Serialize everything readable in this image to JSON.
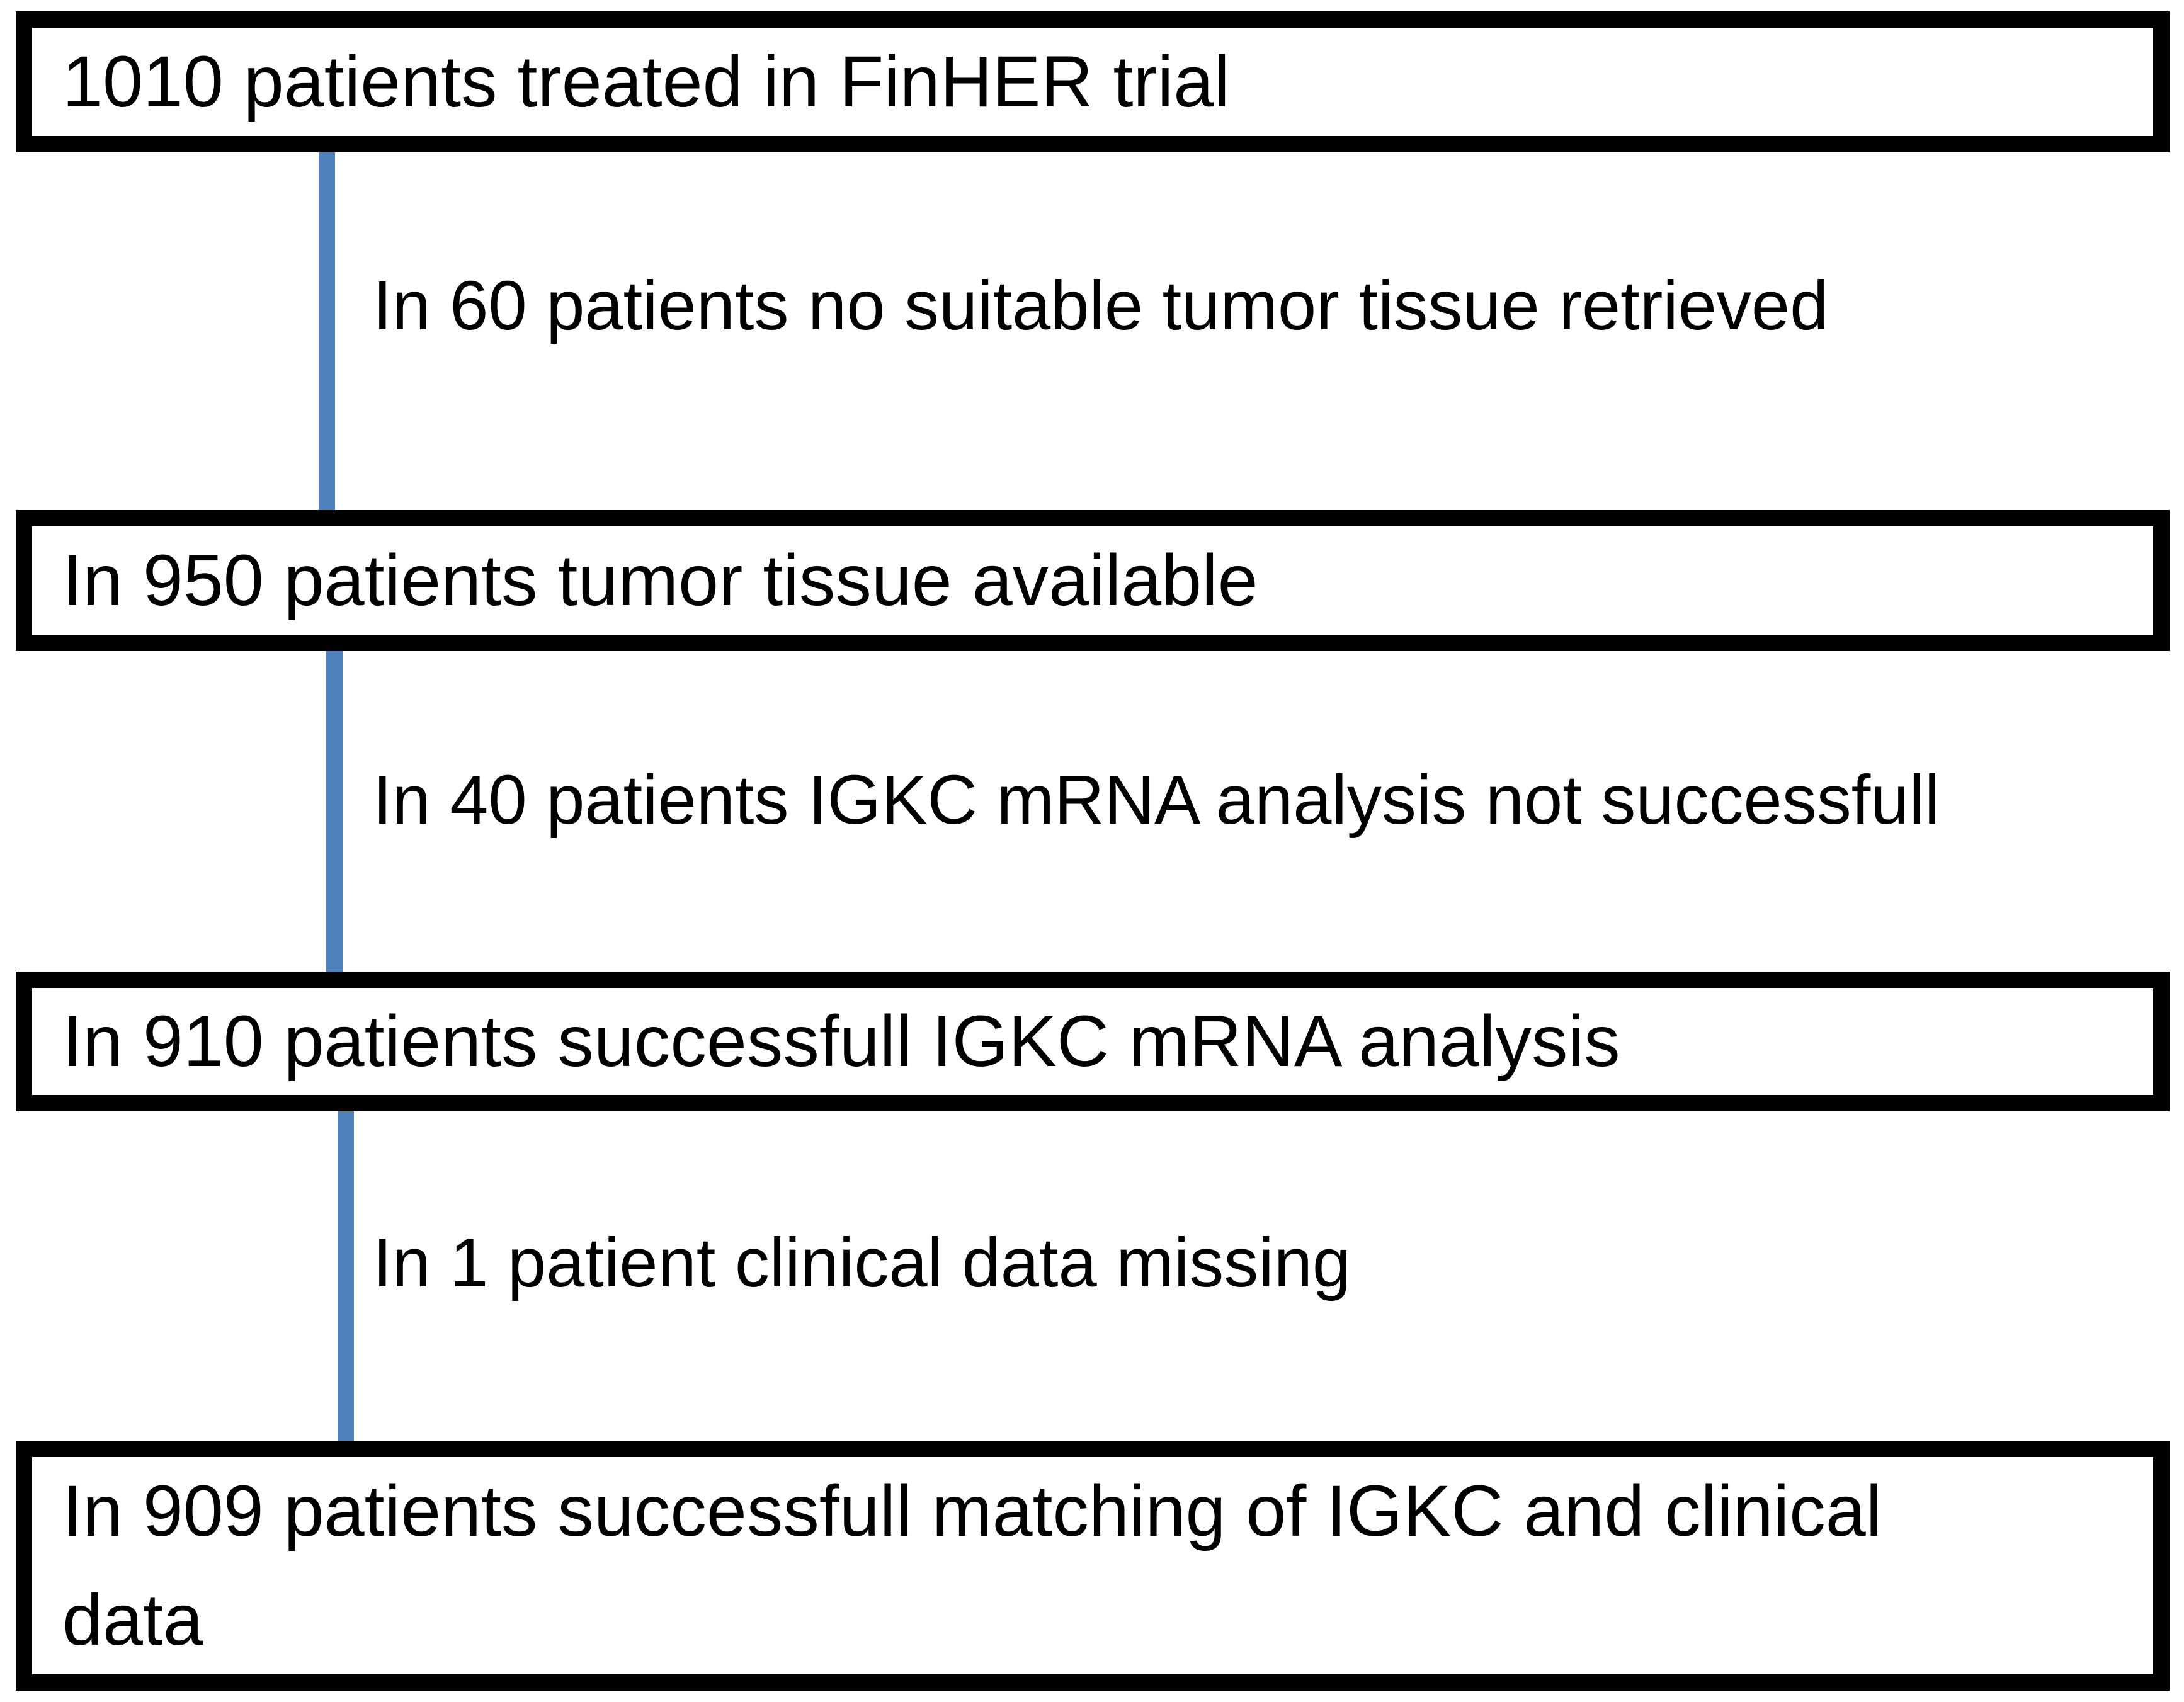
{
  "diagram": {
    "type": "flowchart",
    "colors": {
      "accent": "#4f81bd",
      "border": "#000000",
      "text": "#000000",
      "background": "#ffffff"
    },
    "boxes": [
      {
        "id": "box-1",
        "text": "1010 patients treated in FinHER trial"
      },
      {
        "id": "box-2",
        "text": "In 950 patients tumor tissue available"
      },
      {
        "id": "box-3",
        "text": "In 910 patients successfull IGKC mRNA analysis"
      },
      {
        "id": "box-4",
        "text": "In 909 patients successfull matching of IGKC and clinical data"
      }
    ],
    "connectors": [
      {
        "from": "box-1",
        "to": "box-2",
        "label": "In 60 patients no suitable tumor tissue retrieved"
      },
      {
        "from": "box-2",
        "to": "box-3",
        "label": "In 40 patients IGKC mRNA analysis not successfull"
      },
      {
        "from": "box-3",
        "to": "box-4",
        "label": "In 1 patient clinical data missing"
      }
    ]
  }
}
